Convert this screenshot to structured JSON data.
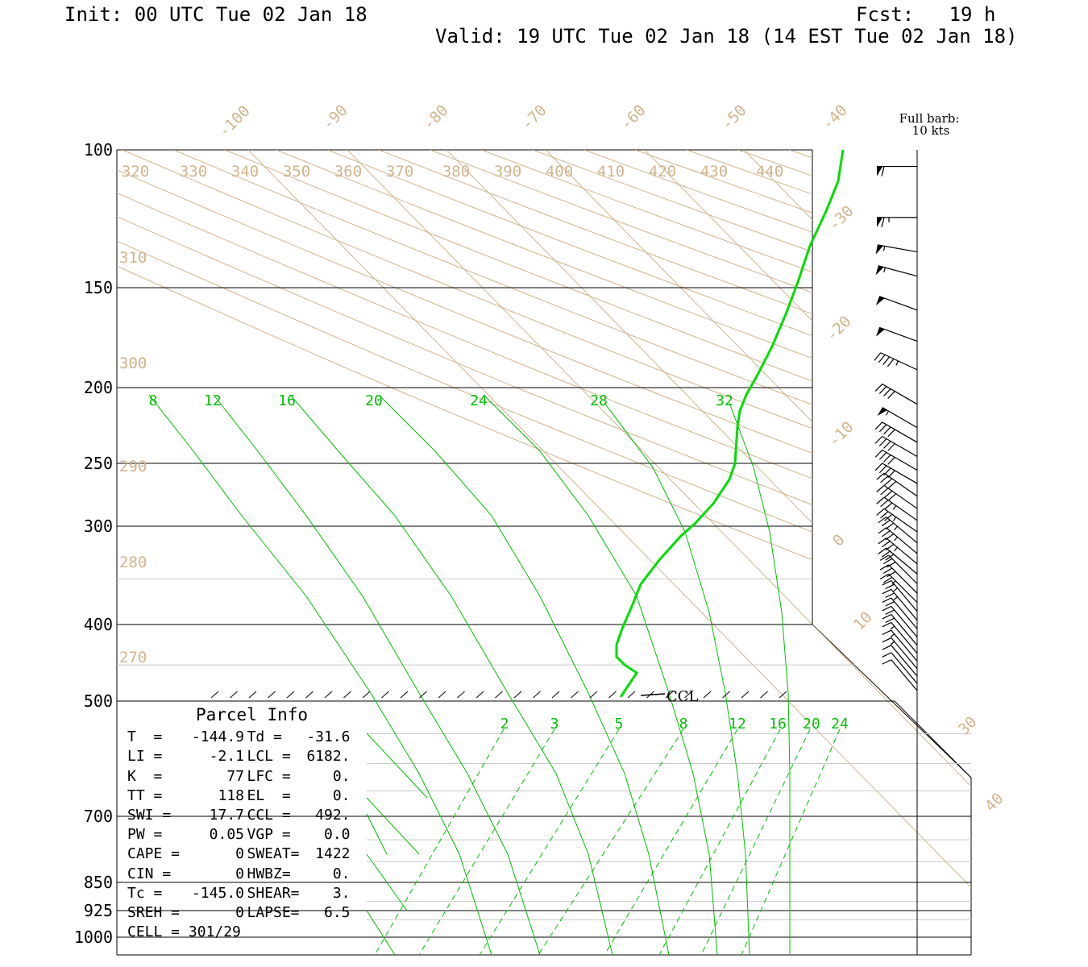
{
  "header": {
    "init": "Init: 00 UTC Tue 02 Jan 18",
    "fcst": "Fcst:   19 h",
    "valid": "Valid: 19 UTC Tue 02 Jan 18 (14 EST Tue 02 Jan 18)"
  },
  "barb_legend": {
    "line1": "Full barb:",
    "line2": "10 kts"
  },
  "ccl_label": "CCL",
  "parcel_info": {
    "title": "Parcel Info",
    "rows": [
      [
        {
          "k": "T  =",
          "v": "-144.9"
        },
        {
          "k": "Td =",
          "v": "-31.6"
        }
      ],
      [
        {
          "k": "LI =",
          "v": "-2.1"
        },
        {
          "k": "LCL =",
          "v": "6182."
        }
      ],
      [
        {
          "k": "K  =",
          "v": "77"
        },
        {
          "k": "LFC =",
          "v": "0."
        }
      ],
      [
        {
          "k": "TT =",
          "v": "118"
        },
        {
          "k": "EL  =",
          "v": "0."
        }
      ],
      [
        {
          "k": "SWI =",
          "v": "17.7"
        },
        {
          "k": "CCL =",
          "v": "492."
        }
      ],
      [
        {
          "k": "PW =",
          "v": "0.05"
        },
        {
          "k": "VGP =",
          "v": "0.0"
        }
      ],
      [
        {
          "k": "CAPE =",
          "v": "0"
        },
        {
          "k": "SWEAT=",
          "v": "1422"
        }
      ],
      [
        {
          "k": "CIN =",
          "v": "0"
        },
        {
          "k": "HWBZ=",
          "v": "0."
        }
      ],
      [
        {
          "k": "Tc =",
          "v": "-145.0"
        },
        {
          "k": "SHEAR=",
          "v": "3."
        }
      ],
      [
        {
          "k": "SREH =",
          "v": "0"
        },
        {
          "k": "LAPSE=",
          "v": "6.5"
        }
      ],
      [
        {
          "k": "CELL = 301/29",
          "v": ""
        },
        {
          "k": "",
          "v": ""
        }
      ]
    ]
  },
  "colors": {
    "sounding": "#00dd00",
    "moist_adiabat": "#00c000",
    "dry_adiabat": "#d2b48c",
    "isotherm": "#d2b48c",
    "isobar": "#000000",
    "isobar_faint": "#c8c8c8"
  },
  "chart_data": {
    "type": "skew-t",
    "pressure_axis": {
      "labels": [
        "100",
        "150",
        "200",
        "250",
        "300",
        "400",
        "500",
        "700",
        "850",
        "925",
        "1000"
      ],
      "values": [
        100,
        150,
        200,
        250,
        300,
        400,
        500,
        700,
        850,
        925,
        1000
      ],
      "range": [
        100,
        1000
      ]
    },
    "isotherm_labels": [
      "-100",
      "-90",
      "-80",
      "-70",
      "-60",
      "-50",
      "-40",
      "-30",
      "-20",
      "-10",
      "0",
      "10",
      "30",
      "40"
    ],
    "isotherm_values": [
      -100,
      -90,
      -80,
      -70,
      -60,
      -50,
      -40,
      -30,
      -20,
      -10,
      0,
      10,
      30,
      40
    ],
    "theta_labels_top": [
      "320",
      "330",
      "340",
      "350",
      "360",
      "370",
      "380",
      "390",
      "400",
      "410",
      "420",
      "430",
      "440"
    ],
    "theta_labels_left": [
      "310",
      "300",
      "290",
      "280",
      "270"
    ],
    "theta_left_pressures": [
      135,
      190,
      255,
      325,
      430
    ],
    "moist_adiabat_labels": [
      "8",
      "12",
      "16",
      "20",
      "24",
      "28",
      "32"
    ],
    "mixing_ratio_labels": [
      "2",
      "3",
      "5",
      "8",
      "12",
      "16",
      "20",
      "24"
    ],
    "temperature_profile": {
      "name": "",
      "pressure": [
        100,
        115,
        130,
        150,
        170,
        190,
        200,
        215,
        235,
        260,
        290,
        310,
        340,
        370,
        400,
        420,
        440,
        460,
        475,
        490
      ],
      "temperature": [
        -40.9,
        -40.2,
        -40.8,
        -40.0,
        -40.0,
        -42.0,
        -43.0,
        -46.5,
        -49.0,
        -50.0,
        -50.5,
        -52.0,
        -54.0,
        -58.5,
        -60.0,
        -62.0,
        -62.5,
        -59.0,
        -57.5,
        -58.0
      ]
    },
    "wind_profile": {
      "pressure": [
        105,
        122,
        135,
        145,
        160,
        175,
        190,
        210,
        225,
        235,
        245,
        255,
        265,
        275,
        285,
        295,
        305,
        315,
        325,
        335,
        345,
        355,
        365,
        375,
        385,
        395,
        405,
        415,
        425,
        435,
        445,
        455,
        465,
        475,
        485
      ],
      "speed_kt": [
        60,
        65,
        55,
        55,
        50,
        50,
        45,
        40,
        55,
        40,
        40,
        40,
        40,
        40,
        40,
        35,
        35,
        35,
        35,
        35,
        30,
        30,
        30,
        25,
        25,
        25,
        20,
        20,
        20,
        15,
        15,
        15,
        10,
        10,
        10
      ],
      "direction_deg": [
        270,
        270,
        280,
        285,
        290,
        290,
        295,
        300,
        300,
        300,
        300,
        300,
        300,
        305,
        305,
        305,
        305,
        310,
        310,
        310,
        310,
        315,
        315,
        315,
        320,
        320,
        320,
        320,
        320,
        320,
        320,
        320,
        320,
        320,
        320
      ]
    }
  }
}
